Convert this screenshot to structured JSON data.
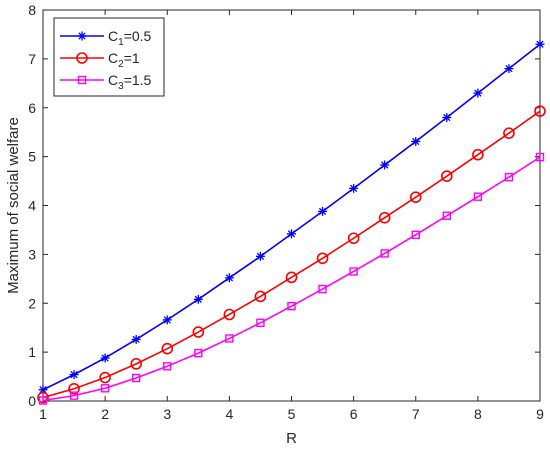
{
  "chart_data": {
    "type": "line",
    "xlabel": "R",
    "ylabel": "Maximum of social welfare",
    "xlim": [
      1,
      9
    ],
    "ylim": [
      0,
      8
    ],
    "xticks": [
      1,
      2,
      3,
      4,
      5,
      6,
      7,
      8,
      9
    ],
    "yticks": [
      0,
      1,
      2,
      3,
      4,
      5,
      6,
      7,
      8
    ],
    "grid": false,
    "legend_position": "top-left",
    "x": [
      1,
      1.5,
      2,
      2.5,
      3,
      3.5,
      4,
      4.5,
      5,
      5.5,
      6,
      6.5,
      7,
      7.5,
      8,
      8.5,
      9
    ],
    "series": [
      {
        "name": "C1=0.5",
        "label_main": "C",
        "label_sub": "1",
        "label_rest": "=0.5",
        "color": "#0000ff",
        "marker": "asterisk",
        "values": [
          0.23,
          0.54,
          0.88,
          1.26,
          1.66,
          2.08,
          2.52,
          2.96,
          3.42,
          3.88,
          4.35,
          4.83,
          5.31,
          5.8,
          6.3,
          6.8,
          7.3
        ]
      },
      {
        "name": "C2=1",
        "label_main": "C",
        "label_sub": "2",
        "label_rest": "=1",
        "color": "#ff0000",
        "marker": "circle",
        "values": [
          0.07,
          0.25,
          0.48,
          0.76,
          1.07,
          1.41,
          1.77,
          2.14,
          2.53,
          2.92,
          3.33,
          3.75,
          4.17,
          4.6,
          5.04,
          5.48,
          5.93
        ]
      },
      {
        "name": "C3=1.5",
        "label_main": "C",
        "label_sub": "3",
        "label_rest": "=1.5",
        "color": "#ff00ff",
        "marker": "square",
        "values": [
          0.01,
          0.11,
          0.26,
          0.47,
          0.71,
          0.98,
          1.28,
          1.6,
          1.94,
          2.29,
          2.65,
          3.02,
          3.4,
          3.79,
          4.18,
          4.58,
          4.99
        ]
      }
    ]
  }
}
